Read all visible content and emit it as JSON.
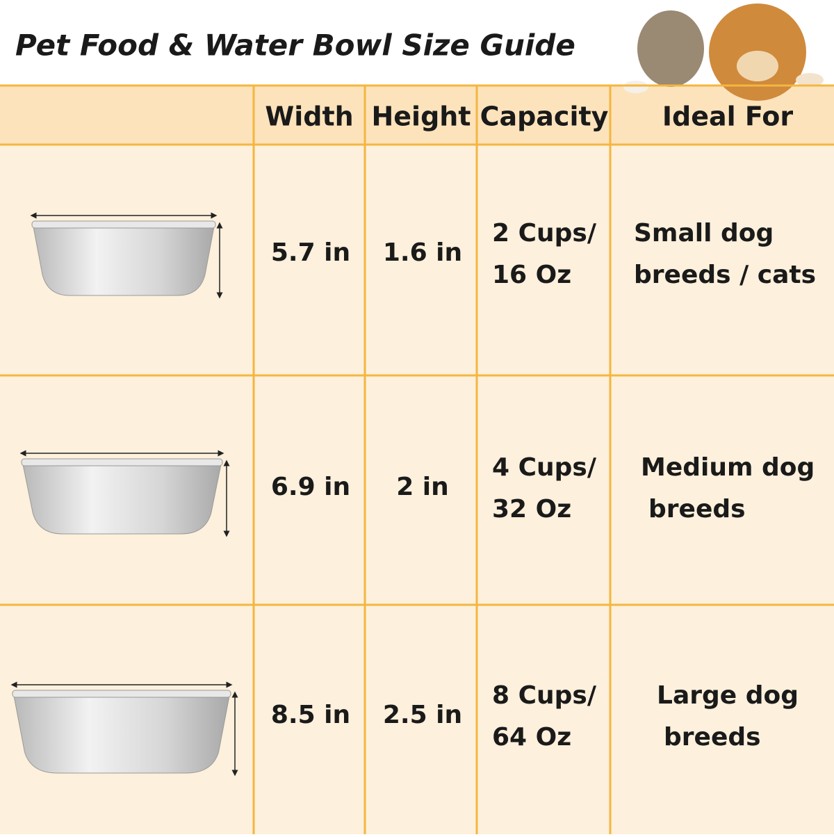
{
  "title": "Pet Food & Water Bowl Size Guide",
  "table": {
    "header": [
      "Width",
      "Height",
      "Capacity",
      "Ideal For"
    ],
    "rows": [
      {
        "width": "5.7 in",
        "height": "1.6 in",
        "capacity": [
          "2 Cups/",
          "16 Oz"
        ],
        "ideal_for": [
          "Small dog",
          "breeds / cats"
        ]
      },
      {
        "width": "6.9 in",
        "height": "2 in",
        "capacity": [
          "4 Cups/",
          "32 Oz"
        ],
        "ideal_for": [
          "Medium dog",
          "breeds"
        ]
      },
      {
        "width": "8.5 in",
        "height": "2.5 in",
        "capacity": [
          "8 Cups/",
          "64 Oz"
        ],
        "ideal_for": [
          "Large dog",
          "breeds"
        ]
      }
    ]
  }
}
